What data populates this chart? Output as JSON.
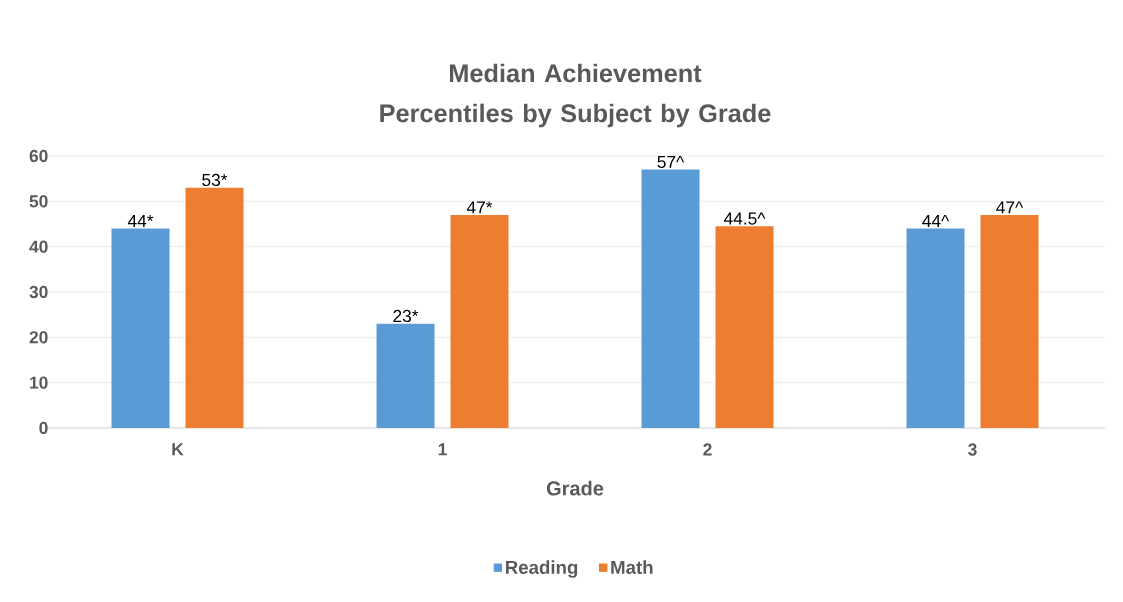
{
  "chart_data": {
    "type": "bar",
    "title": "Median Achievement Percentiles by Subject by Grade",
    "xlabel": "Grade",
    "categories": [
      "K",
      "1",
      "2",
      "3"
    ],
    "series": [
      {
        "name": "Reading",
        "color": "#5b9bd5",
        "values": [
          44,
          23,
          57,
          44
        ],
        "value_labels": [
          "44*",
          "23*",
          "57^",
          "44^"
        ]
      },
      {
        "name": "Math",
        "color": "#ed7d31",
        "values": [
          53,
          47,
          44.5,
          47
        ],
        "value_labels": [
          "53*",
          "47*",
          "44.5^",
          "47^"
        ]
      }
    ],
    "ylim": [
      0,
      60
    ],
    "yticks": [
      0,
      10,
      20,
      30,
      40,
      50,
      60
    ],
    "grid": "y",
    "legend": "bottom"
  }
}
